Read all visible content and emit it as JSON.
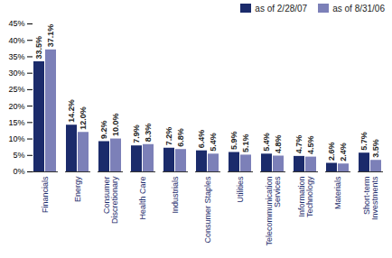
{
  "chart_data": {
    "type": "bar",
    "categories": [
      "Financials",
      "Energy",
      "Consumer Discretionary",
      "Health Care",
      "Industrials",
      "Consumer Staples",
      "Utilities",
      "Telecommunication Services",
      "Information Technology",
      "Materials",
      "Short-term Investments"
    ],
    "series": [
      {
        "name": "as of 2/28/07",
        "color": "#1b2b6b",
        "values": [
          33.5,
          14.2,
          9.2,
          7.9,
          7.2,
          6.4,
          5.9,
          5.4,
          4.7,
          2.6,
          5.7
        ],
        "value_labels": [
          "33.5%",
          "14.2%",
          "9.2%",
          "7.9%",
          "7.2%",
          "6.4%",
          "5.9%",
          "5.4%",
          "4.7%",
          "2.6%",
          "5.7%"
        ]
      },
      {
        "name": "as of 8/31/06",
        "color": "#7c80b8",
        "values": [
          37.1,
          12.0,
          10.0,
          8.3,
          6.8,
          5.4,
          5.1,
          4.8,
          4.5,
          2.4,
          3.5
        ],
        "value_labels": [
          "37.1%",
          "12.0%",
          "10.0%",
          "8.3%",
          "6.8%",
          "5.4%",
          "5.1%",
          "4.8%",
          "4.5%",
          "2.4%",
          "3.5%"
        ]
      }
    ],
    "ylim": [
      0,
      45
    ],
    "yticks": [
      {
        "value": 0,
        "label": "0%"
      },
      {
        "value": 5,
        "label": "5%"
      },
      {
        "value": 10,
        "label": "10%"
      },
      {
        "value": 15,
        "label": "15%"
      },
      {
        "value": 20,
        "label": "20%"
      },
      {
        "value": 25,
        "label": "25%"
      },
      {
        "value": 30,
        "label": "30%"
      },
      {
        "value": 35,
        "label": "35%"
      },
      {
        "value": 40,
        "label": "40%"
      },
      {
        "value": 45,
        "label": "45%"
      }
    ],
    "grid": false,
    "legend": "top right",
    "data_labels": true
  }
}
